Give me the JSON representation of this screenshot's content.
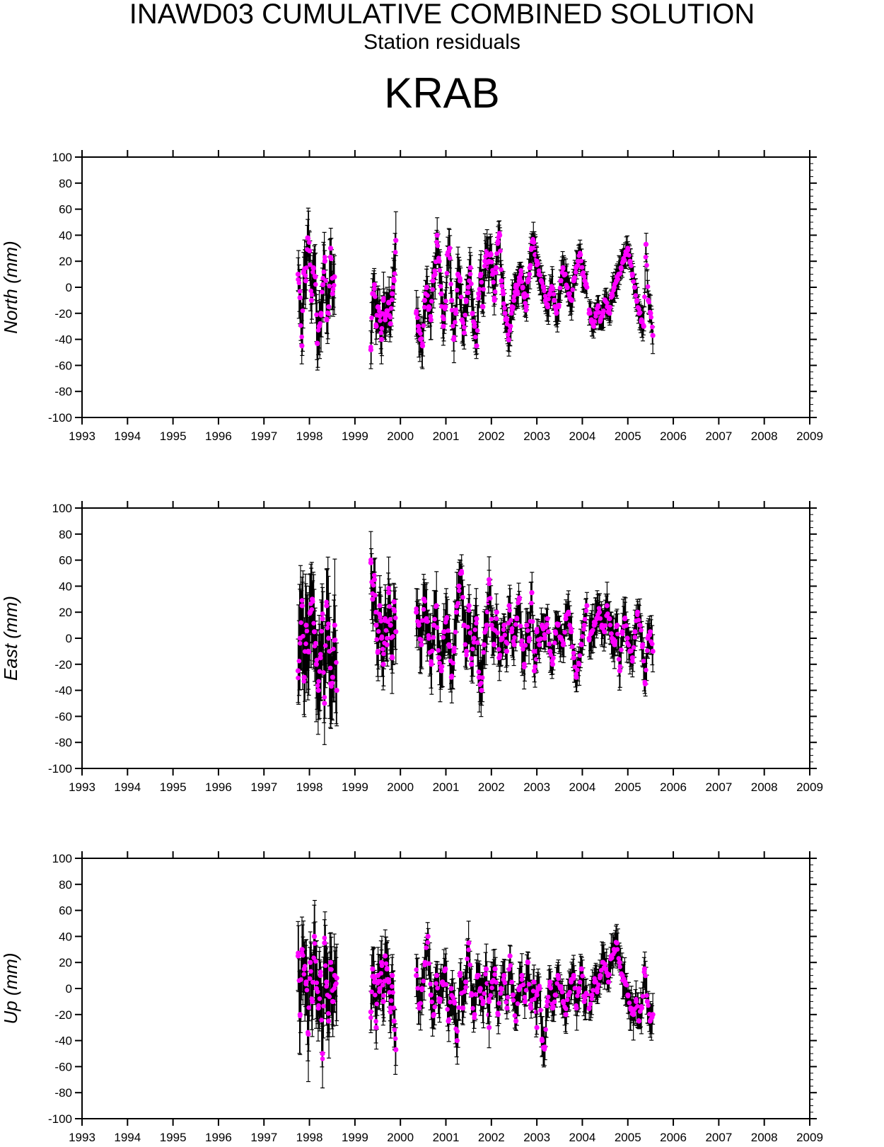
{
  "title": "INAWD03 CUMULATIVE COMBINED SOLUTION",
  "subtitle": "Station residuals",
  "station": "KRAB",
  "colors": {
    "point": "#ff00ff",
    "errorbar": "#000000",
    "axis": "#000000"
  },
  "chart_data": [
    {
      "type": "scatter",
      "title": "",
      "ylabel": "North (mm)",
      "xlabel": "",
      "xlim": [
        1993,
        2009
      ],
      "ylim": [
        -100,
        100
      ],
      "xticks": [
        "1993",
        "1994",
        "1995",
        "1996",
        "1997",
        "1998",
        "1999",
        "2000",
        "2001",
        "2002",
        "2003",
        "2004",
        "2005",
        "2006",
        "2007",
        "2008",
        "2009"
      ],
      "yticks": [
        "100",
        "80",
        "60",
        "40",
        "20",
        "0",
        "-20",
        "-40",
        "-60",
        "-80",
        "-100"
      ],
      "grid": false,
      "error_bars": true,
      "segments": [
        {
          "start": 1997.75,
          "end": 1998.55,
          "err": 18,
          "vals": [
            10,
            -8,
            -45,
            12,
            5,
            38,
            28,
            -10,
            15,
            8,
            -43,
            -30,
            -20,
            2,
            20,
            -25,
            -15,
            30,
            -5,
            8
          ]
        },
        {
          "start": 1999.35,
          "end": 1999.9,
          "err": 15,
          "vals": [
            -48,
            -5,
            2,
            -30,
            -15,
            -22,
            -40,
            -10,
            -25,
            -18,
            -12,
            -28,
            -5,
            5,
            36
          ]
        },
        {
          "start": 2000.35,
          "end": 2001.95,
          "err": 14,
          "vals": [
            -20,
            -30,
            -40,
            -45,
            -10,
            0,
            -15,
            -25,
            5,
            10,
            40,
            20,
            -5,
            -30,
            -15,
            25,
            30,
            -10,
            -40,
            -20,
            10,
            5,
            -25,
            -35,
            -10,
            0,
            15,
            -20,
            -30,
            -45,
            -5,
            10,
            -15,
            20,
            25,
            15
          ]
        },
        {
          "start": 2001.95,
          "end": 2003.0,
          "err": 12,
          "vals": [
            20,
            25,
            10,
            -10,
            15,
            35,
            40,
            5,
            -5,
            -20,
            -25,
            -40,
            -30,
            -15,
            -10,
            0,
            -5,
            5,
            10,
            0,
            -5,
            -15,
            5,
            15,
            30,
            35,
            25,
            20
          ]
        },
        {
          "start": 2003.0,
          "end": 2004.1,
          "err": 10,
          "vals": [
            20,
            10,
            5,
            0,
            -10,
            -15,
            -5,
            0,
            -10,
            -20,
            -15,
            5,
            15,
            10,
            0,
            -5,
            -10,
            5,
            15,
            20,
            25,
            10,
            5,
            0
          ]
        },
        {
          "start": 2004.15,
          "end": 2005.55,
          "err": 9,
          "vals": [
            -20,
            -25,
            -30,
            -20,
            -15,
            -25,
            -20,
            -10,
            -15,
            -20,
            -5,
            0,
            5,
            10,
            15,
            20,
            25,
            30,
            20,
            10,
            0,
            -10,
            -20,
            -25,
            -30,
            33,
            -10,
            -20,
            -37
          ]
        }
      ]
    },
    {
      "type": "scatter",
      "title": "",
      "ylabel": "East (mm)",
      "xlabel": "",
      "xlim": [
        1993,
        2009
      ],
      "ylim": [
        -100,
        100
      ],
      "xticks": [
        "1993",
        "1994",
        "1995",
        "1996",
        "1997",
        "1998",
        "1999",
        "2000",
        "2001",
        "2002",
        "2003",
        "2004",
        "2005",
        "2006",
        "2007",
        "2008",
        "2009"
      ],
      "yticks": [
        "100",
        "80",
        "60",
        "40",
        "20",
        "0",
        "-20",
        "-40",
        "-60",
        "-80",
        "-100"
      ],
      "grid": false,
      "error_bars": true,
      "segments": [
        {
          "start": 1997.75,
          "end": 1998.6,
          "err": 32,
          "vals": [
            -25,
            0,
            25,
            -30,
            10,
            -10,
            20,
            30,
            5,
            -20,
            -40,
            -15,
            15,
            -50,
            25,
            0,
            -35,
            -30,
            10,
            -40
          ]
        },
        {
          "start": 1999.35,
          "end": 1999.9,
          "err": 20,
          "vals": [
            58,
            30,
            45,
            10,
            -10,
            25,
            0,
            -20,
            15,
            -5,
            35,
            10,
            -15,
            28,
            5
          ]
        },
        {
          "start": 2000.35,
          "end": 2001.95,
          "err": 18,
          "vals": [
            20,
            10,
            -5,
            30,
            15,
            0,
            -20,
            10,
            25,
            -15,
            -25,
            5,
            15,
            -5,
            -30,
            -10,
            20,
            40,
            50,
            10,
            -10,
            25,
            -20,
            0,
            15,
            -30,
            -40,
            -5,
            10,
            30
          ]
        },
        {
          "start": 2001.95,
          "end": 2003.0,
          "err": 14,
          "vals": [
            45,
            10,
            -5,
            20,
            -15,
            0,
            10,
            -10,
            25,
            5,
            -5,
            15,
            30,
            -5,
            -20,
            10,
            0,
            35,
            -25,
            -10
          ]
        },
        {
          "start": 2003.0,
          "end": 2004.1,
          "err": 12,
          "vals": [
            5,
            -5,
            10,
            0,
            15,
            -10,
            -20,
            5,
            10,
            0,
            -5,
            15,
            20,
            5,
            -15,
            -30,
            -20,
            -5,
            10,
            25
          ]
        },
        {
          "start": 2004.15,
          "end": 2005.55,
          "err": 13,
          "vals": [
            0,
            5,
            10,
            15,
            20,
            10,
            5,
            25,
            15,
            0,
            -5,
            10,
            -25,
            5,
            15,
            0,
            -10,
            -15,
            5,
            20,
            10,
            -5,
            -35,
            0,
            5,
            -10
          ]
        }
      ]
    },
    {
      "type": "scatter",
      "title": "",
      "ylabel": "Up (mm)",
      "xlabel": "",
      "xlim": [
        1993,
        2009
      ],
      "ylim": [
        -100,
        100
      ],
      "xticks": [
        "1993",
        "1994",
        "1995",
        "1996",
        "1997",
        "1998",
        "1999",
        "2000",
        "2001",
        "2002",
        "2003",
        "2004",
        "2005",
        "2006",
        "2007",
        "2008",
        "2009"
      ],
      "yticks": [
        "100",
        "80",
        "60",
        "40",
        "20",
        "0",
        "-20",
        "-40",
        "-60",
        "-80",
        "-100"
      ],
      "grid": false,
      "error_bars": true,
      "segments": [
        {
          "start": 1997.75,
          "end": 1998.6,
          "err": 25,
          "vals": [
            25,
            -20,
            30,
            15,
            5,
            -35,
            20,
            -10,
            40,
            0,
            -15,
            10,
            -50,
            35,
            5,
            -25,
            20,
            -10,
            10,
            8
          ]
        },
        {
          "start": 1999.35,
          "end": 1999.9,
          "err": 18,
          "vals": [
            -18,
            15,
            5,
            -30,
            10,
            0,
            20,
            -10,
            25,
            15,
            5,
            -15,
            10,
            -25,
            -47
          ]
        },
        {
          "start": 2000.35,
          "end": 2001.95,
          "err": 15,
          "vals": [
            10,
            -15,
            0,
            20,
            40,
            -5,
            -20,
            10,
            -10,
            5,
            15,
            -25,
            0,
            -10,
            -40,
            10,
            -15,
            5,
            35,
            -5,
            -20,
            10,
            0,
            -10,
            15,
            -30
          ]
        },
        {
          "start": 2001.95,
          "end": 2003.0,
          "err": 13,
          "vals": [
            -10,
            5,
            15,
            -20,
            0,
            10,
            -15,
            25,
            -5,
            -25,
            0,
            10,
            -10,
            20,
            -15,
            5,
            -30
          ]
        },
        {
          "start": 2003.0,
          "end": 2004.1,
          "err": 12,
          "vals": [
            -5,
            0,
            -40,
            -45,
            -10,
            5,
            -15,
            -5,
            10,
            0,
            -10,
            -20,
            -5,
            5,
            10,
            -15,
            0,
            15,
            -10,
            -5
          ]
        },
        {
          "start": 2004.15,
          "end": 2005.55,
          "err": 12,
          "vals": [
            -15,
            -5,
            5,
            0,
            10,
            20,
            15,
            5,
            25,
            30,
            35,
            20,
            10,
            5,
            -5,
            -15,
            -20,
            -10,
            -25,
            -15,
            15,
            -10,
            -25,
            -20
          ]
        }
      ]
    }
  ]
}
